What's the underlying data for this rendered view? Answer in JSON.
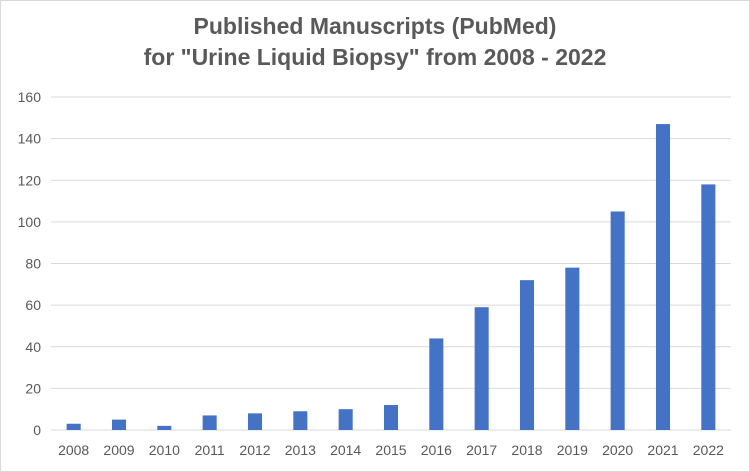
{
  "chart_data": {
    "type": "bar",
    "title_lines": [
      "Published Manuscripts (PubMed)",
      "for \"Urine Liquid Biopsy\" from 2008 - 2022"
    ],
    "categories": [
      "2008",
      "2009",
      "2010",
      "2011",
      "2012",
      "2013",
      "2014",
      "2015",
      "2016",
      "2017",
      "2018",
      "2019",
      "2020",
      "2021",
      "2022"
    ],
    "values": [
      3,
      5,
      2,
      7,
      8,
      9,
      10,
      12,
      44,
      59,
      72,
      78,
      105,
      147,
      118
    ],
    "ylim": [
      0,
      160
    ],
    "yticks": [
      0,
      20,
      40,
      60,
      80,
      100,
      120,
      140,
      160
    ],
    "xlabel": "",
    "ylabel": "",
    "grid": true,
    "legend": "none",
    "bar_color": "#4472c4",
    "grid_color": "#d9d9d9",
    "text_color": "#595959"
  }
}
